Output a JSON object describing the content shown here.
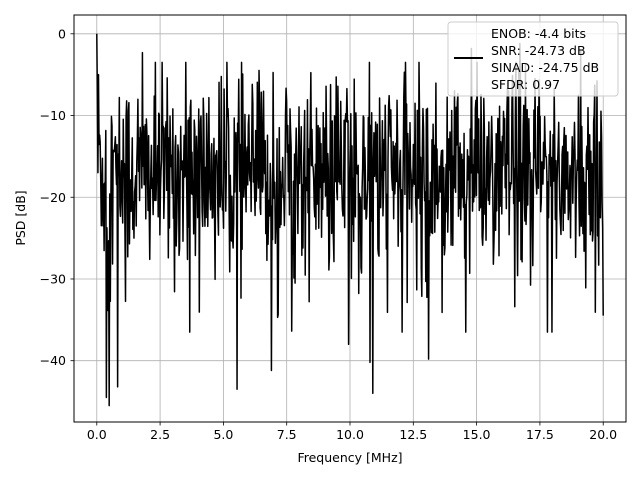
{
  "chart_data": {
    "type": "line",
    "title": "",
    "xlabel": "Frequency [MHz]",
    "ylabel": "PSD [dB]",
    "xlim": [
      -0.9,
      20.9
    ],
    "ylim": [
      -47.5,
      2.3
    ],
    "xticks": [
      0.0,
      2.5,
      5.0,
      7.5,
      10.0,
      12.5,
      15.0,
      17.5,
      20.0
    ],
    "xtick_labels": [
      "0.0",
      "2.5",
      "5.0",
      "7.5",
      "10.0",
      "12.5",
      "15.0",
      "17.5",
      "20.0"
    ],
    "yticks": [
      0,
      -10,
      -20,
      -30,
      -40
    ],
    "ytick_labels": [
      "0",
      "−10",
      "−20",
      "−30",
      "−40"
    ],
    "grid": true,
    "legend_position": "top-right",
    "legend_lines": [
      "ENOB: -4.4 bits",
      "SNR: -24.73 dB",
      "SINAD: -24.75 dB",
      "SFDR: 0.97"
    ],
    "line_color": "#000000",
    "series": [
      {
        "x_start": 0.0,
        "x_end": 20.0,
        "num_points": 900,
        "shape": "dense noise spectrum",
        "dc_peak": 0.0,
        "typical_range": [
          -30,
          -5
        ],
        "notable_points": [
          {
            "x": 0.0,
            "y": 0.0
          },
          {
            "x": 0.38,
            "y": -44.5
          },
          {
            "x": 0.48,
            "y": -45.5
          },
          {
            "x": 0.82,
            "y": -43.2
          },
          {
            "x": 5.55,
            "y": -43.5
          },
          {
            "x": 10.9,
            "y": -44.0
          },
          {
            "x": 10.8,
            "y": -40.2
          },
          {
            "x": 13.1,
            "y": -39.8
          },
          {
            "x": 6.9,
            "y": -41.2
          },
          {
            "x": 12.05,
            "y": -36.5
          },
          {
            "x": 9.95,
            "y": -38.0
          },
          {
            "x": 1.8,
            "y": -2.3
          },
          {
            "x": 14.8,
            "y": -1.8
          },
          {
            "x": 16.7,
            "y": -1.2
          },
          {
            "x": 19.1,
            "y": -2.1
          }
        ]
      }
    ]
  }
}
